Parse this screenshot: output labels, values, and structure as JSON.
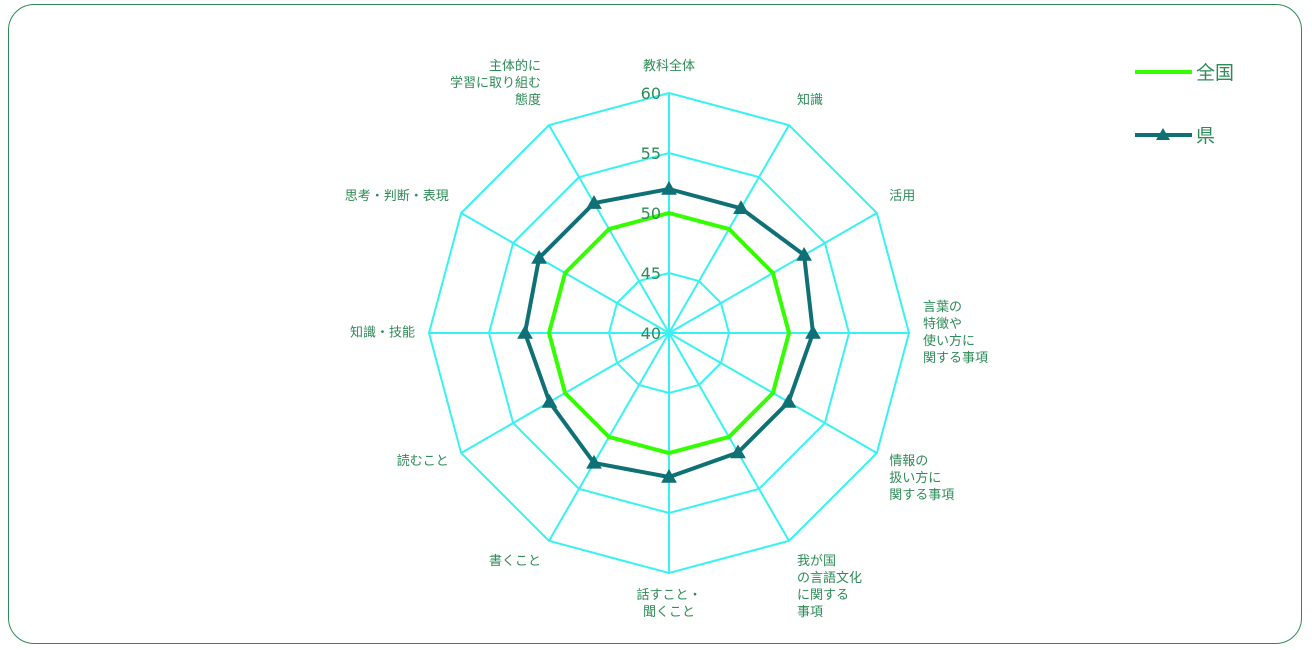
{
  "chart_data": {
    "type": "radar",
    "title": "",
    "categories": [
      [
        "教科全体"
      ],
      [
        "知識"
      ],
      [
        "活用"
      ],
      [
        "言葉の",
        "特徴や",
        "使い方に",
        "関する事項"
      ],
      [
        "情報の",
        "扱い方に",
        "関する事項"
      ],
      [
        "我が国",
        "の言語文化",
        "に関する",
        "事項"
      ],
      [
        "話すこと・",
        "聞くこと"
      ],
      [
        "書くこと"
      ],
      [
        "読むこと"
      ],
      [
        "知識・技能"
      ],
      [
        "思考・判断・表現"
      ],
      [
        "主体的に",
        "学習に取り組む",
        "態度"
      ]
    ],
    "rlim": [
      40,
      60
    ],
    "ticks": [
      40,
      45,
      50,
      55,
      60
    ],
    "series": [
      {
        "name": "全国",
        "color": "#33ff00",
        "marker": "none",
        "values": [
          50,
          50,
          50,
          50,
          50,
          50,
          50,
          50,
          50,
          50,
          50,
          50
        ]
      },
      {
        "name": "県",
        "color": "#0f7075",
        "marker": "triangle",
        "values": [
          52,
          52,
          53,
          52,
          51.5,
          51.5,
          52,
          52.5,
          51.5,
          52,
          52.5,
          52.5
        ]
      }
    ],
    "grid_color": "#38f2f2",
    "legend": "top-right"
  }
}
